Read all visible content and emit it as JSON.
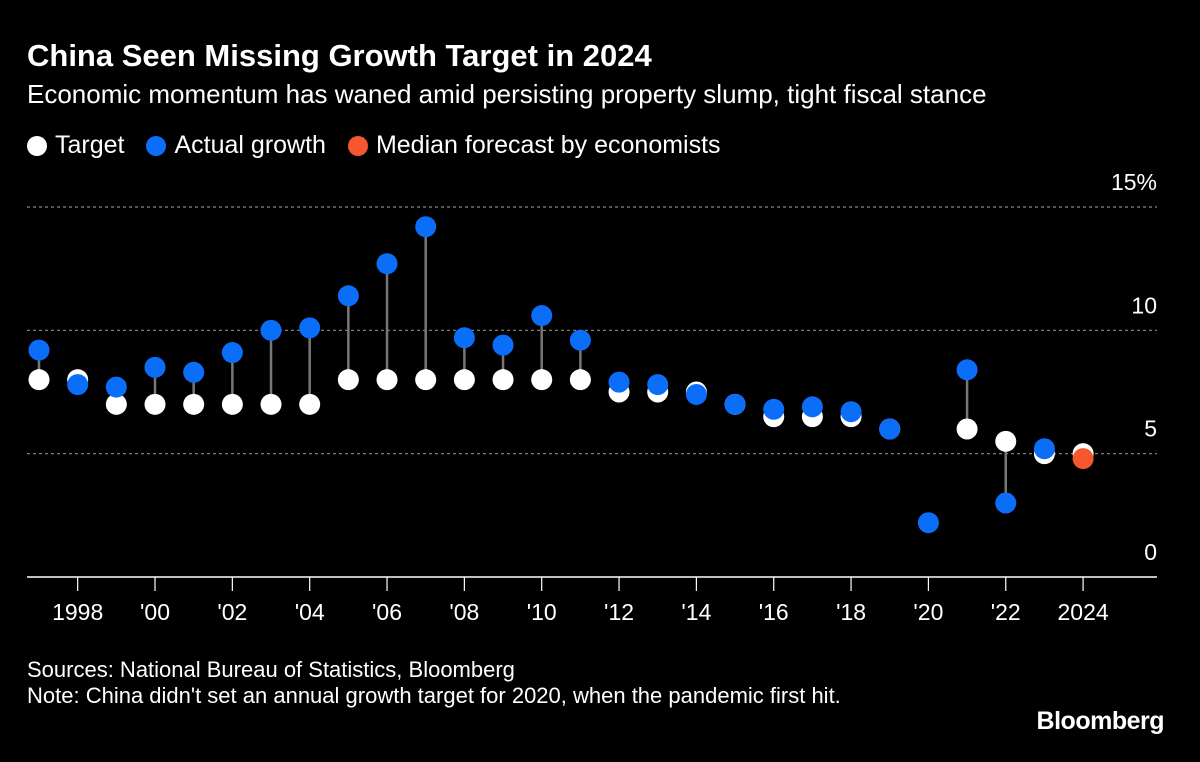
{
  "chart_data": {
    "type": "scatter",
    "title": "China Seen Missing Growth Target in 2024",
    "subtitle": "Economic momentum has waned amid persisting property slump, tight fiscal stance",
    "legend": [
      {
        "name": "Target",
        "color": "#ffffff"
      },
      {
        "name": "Actual growth",
        "color": "#0b6ef8"
      },
      {
        "name": "Median forecast by economists",
        "color": "#f5582f"
      }
    ],
    "legend_placement": "top-left",
    "x": [
      1997,
      1998,
      1999,
      2000,
      2001,
      2002,
      2003,
      2004,
      2005,
      2006,
      2007,
      2008,
      2009,
      2010,
      2011,
      2012,
      2013,
      2014,
      2015,
      2016,
      2017,
      2018,
      2019,
      2020,
      2021,
      2022,
      2023,
      2024
    ],
    "series": [
      {
        "name": "Target",
        "values": [
          8,
          8,
          7,
          7,
          7,
          7,
          7,
          7,
          8,
          8,
          8,
          8,
          8,
          8,
          8,
          7.5,
          7.5,
          7.5,
          7,
          6.5,
          6.5,
          6.5,
          6,
          null,
          6,
          5.5,
          5,
          5
        ]
      },
      {
        "name": "Actual growth",
        "values": [
          9.2,
          7.8,
          7.7,
          8.5,
          8.3,
          9.1,
          10.0,
          10.1,
          11.4,
          12.7,
          14.2,
          9.7,
          9.4,
          10.6,
          9.6,
          7.9,
          7.8,
          7.4,
          7.0,
          6.8,
          6.9,
          6.7,
          6.0,
          2.2,
          8.4,
          3.0,
          5.2,
          null
        ]
      },
      {
        "name": "Median forecast by economists",
        "values": [
          null,
          null,
          null,
          null,
          null,
          null,
          null,
          null,
          null,
          null,
          null,
          null,
          null,
          null,
          null,
          null,
          null,
          null,
          null,
          null,
          null,
          null,
          null,
          null,
          null,
          null,
          null,
          4.8
        ]
      }
    ],
    "x_tick_labels": [
      {
        "x": 1998,
        "label": "1998"
      },
      {
        "x": 2000,
        "label": "'00"
      },
      {
        "x": 2002,
        "label": "'02"
      },
      {
        "x": 2004,
        "label": "'04"
      },
      {
        "x": 2006,
        "label": "'06"
      },
      {
        "x": 2008,
        "label": "'08"
      },
      {
        "x": 2010,
        "label": "'10"
      },
      {
        "x": 2012,
        "label": "'12"
      },
      {
        "x": 2014,
        "label": "'14"
      },
      {
        "x": 2016,
        "label": "'16"
      },
      {
        "x": 2018,
        "label": "'18"
      },
      {
        "x": 2020,
        "label": "'20"
      },
      {
        "x": 2022,
        "label": "'22"
      },
      {
        "x": 2024,
        "label": "2024"
      }
    ],
    "y_ticks": [
      {
        "v": 0,
        "label": "0"
      },
      {
        "v": 5,
        "label": "5"
      },
      {
        "v": 10,
        "label": "10"
      },
      {
        "v": 15,
        "label": "15%"
      }
    ],
    "ylim": [
      0,
      15
    ],
    "xlim": [
      1996.7,
      2026.8
    ],
    "grid": true,
    "xlabel": "",
    "ylabel": ""
  },
  "footer": {
    "sources": "Sources: National Bureau of Statistics, Bloomberg",
    "note": "Note: China didn't set an annual growth target for 2020, when the pandemic first hit."
  },
  "brand": "Bloomberg"
}
